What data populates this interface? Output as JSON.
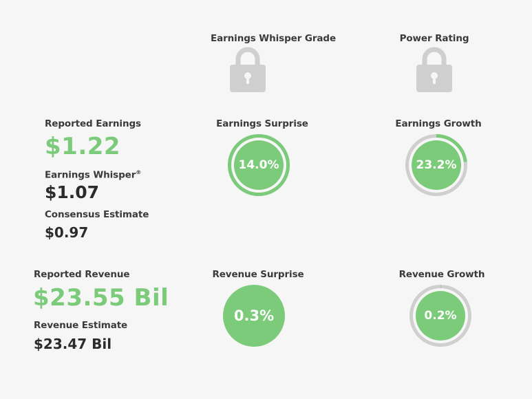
{
  "colors": {
    "accent_green": "#7bcb7a",
    "track_gray": "#cfcfcf",
    "lock_gray": "#cfcfcf",
    "background": "#f6f6f6"
  },
  "headers": {
    "whisper_grade": "Earnings Whisper Grade",
    "power_rating": "Power Rating",
    "whisper_grade_icon": "lock-icon",
    "power_rating_icon": "lock-icon"
  },
  "earnings": {
    "reported_label": "Reported Earnings",
    "reported_value": "$1.22",
    "whisper_label": "Earnings Whisper",
    "whisper_mark": "®",
    "whisper_value": "$1.07",
    "consensus_label": "Consensus Estimate",
    "consensus_value": "$0.97"
  },
  "revenue": {
    "reported_label": "Reported Revenue",
    "reported_value": "$23.55 Bil",
    "estimate_label": "Revenue Estimate",
    "estimate_value": "$23.47 Bil"
  },
  "gauges": {
    "earnings_surprise": {
      "label": "Earnings Surprise",
      "text": "14.0%",
      "value": 14.0,
      "fill_fraction": 1.0
    },
    "earnings_growth": {
      "label": "Earnings Growth",
      "text": "23.2%",
      "value": 23.2,
      "fill_fraction": 0.232
    },
    "revenue_surprise": {
      "label": "Revenue Surprise",
      "text": "0.3%",
      "value": 0.3,
      "fill_fraction": 0.0
    },
    "revenue_growth": {
      "label": "Revenue Growth",
      "text": "0.2%",
      "value": 0.2,
      "fill_fraction": 0.002
    }
  }
}
